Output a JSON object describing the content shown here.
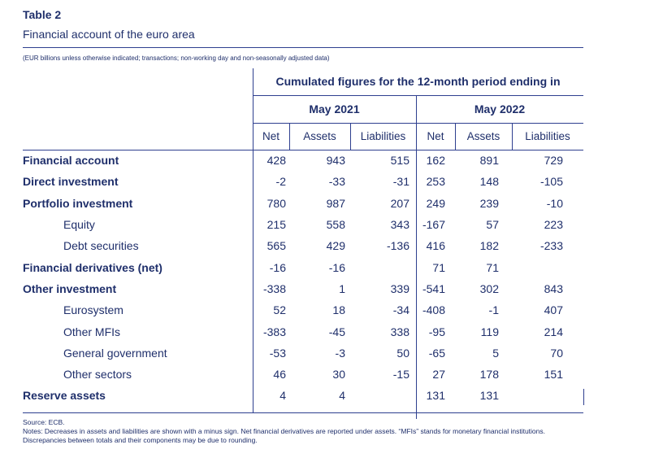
{
  "title": "Table 2",
  "subtitle": "Financial account of the euro area",
  "units_note": "(EUR billions unless otherwise indicated; transactions; non-working day and non-seasonally adjusted data)",
  "header": {
    "main": "Cumulated figures for the 12-month period ending in",
    "periods": [
      "May 2021",
      "May 2022"
    ],
    "columns": [
      "Net",
      "Assets",
      "Liabilities",
      "Net",
      "Assets",
      "Liabilities"
    ]
  },
  "rows": [
    {
      "label": "Financial account",
      "bold": true,
      "values": [
        "428",
        "943",
        "515",
        "162",
        "891",
        "729"
      ]
    },
    {
      "label": "Direct investment",
      "bold": true,
      "values": [
        "-2",
        "-33",
        "-31",
        "253",
        "148",
        "-105"
      ]
    },
    {
      "label": "Portfolio investment",
      "bold": true,
      "values": [
        "780",
        "987",
        "207",
        "249",
        "239",
        "-10"
      ]
    },
    {
      "label": "Equity",
      "bold": false,
      "values": [
        "215",
        "558",
        "343",
        "-167",
        "57",
        "223"
      ]
    },
    {
      "label": "Debt securities",
      "bold": false,
      "values": [
        "565",
        "429",
        "-136",
        "416",
        "182",
        "-233"
      ]
    },
    {
      "label": "Financial derivatives (net)",
      "bold": true,
      "values": [
        "-16",
        "-16",
        "",
        "71",
        "71",
        ""
      ]
    },
    {
      "label": "Other investment",
      "bold": true,
      "values": [
        "-338",
        "1",
        "339",
        "-541",
        "302",
        "843"
      ]
    },
    {
      "label": "Eurosystem",
      "bold": false,
      "values": [
        "52",
        "18",
        "-34",
        "-408",
        "-1",
        "407"
      ]
    },
    {
      "label": "Other MFIs",
      "bold": false,
      "values": [
        "-383",
        "-45",
        "338",
        "-95",
        "119",
        "214"
      ]
    },
    {
      "label": "General government",
      "bold": false,
      "values": [
        "-53",
        "-3",
        "50",
        "-65",
        "5",
        "70"
      ]
    },
    {
      "label": "Other sectors",
      "bold": false,
      "values": [
        "46",
        "30",
        "-15",
        "27",
        "178",
        "151"
      ]
    },
    {
      "label": "Reserve assets",
      "bold": true,
      "values": [
        "4",
        "4",
        "",
        "131",
        "131",
        ""
      ]
    }
  ],
  "source": "Source: ECB.",
  "notes": "Notes: Decreases in assets and liabilities are shown with a minus sign. Net financial derivatives are reported under assets. “MFIs” stands for monetary financial institutions. Discrepancies between totals and their components may be due to rounding."
}
